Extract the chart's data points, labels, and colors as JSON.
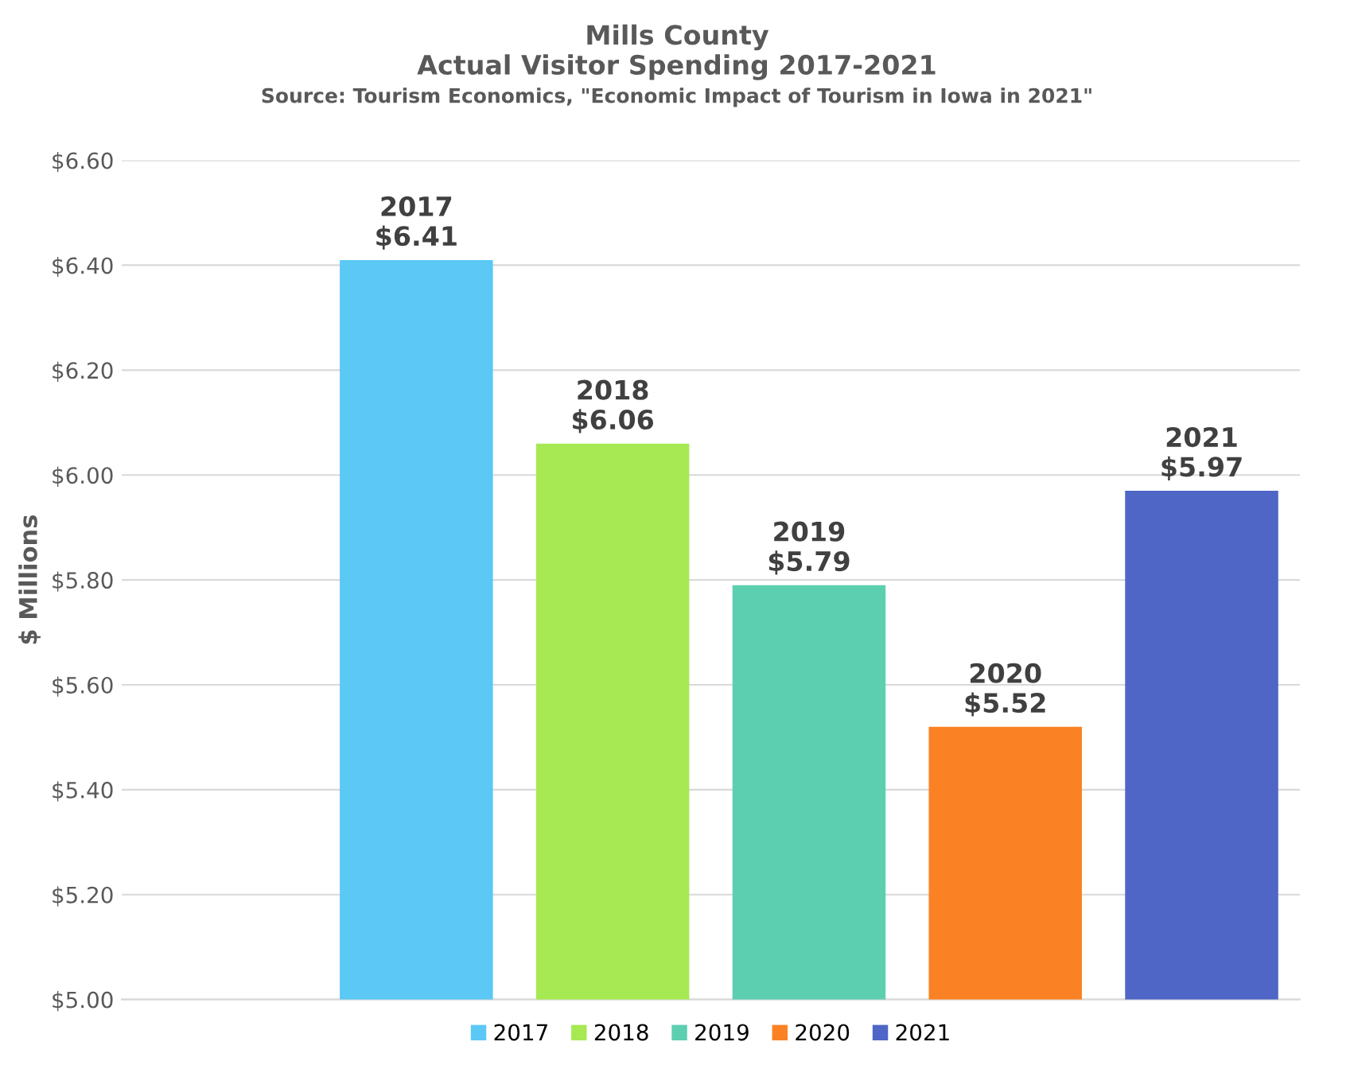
{
  "chart_data": {
    "type": "bar",
    "title": "Mills County\nActual Visitor Spending 2017-2021",
    "subtitle": "Source: Tourism Economics, \"Economic Impact of Tourism in Iowa in 2021\"",
    "ylabel": "$ Millions",
    "categories": [
      null,
      null,
      null,
      null,
      null,
      null
    ],
    "series": [
      {
        "name": "2017",
        "color": "#5bc8f5",
        "values": [
          null,
          6.41,
          null,
          null,
          null,
          null
        ],
        "value_labels": [
          null,
          "2017\n$6.41",
          null,
          null,
          null,
          null
        ]
      },
      {
        "name": "2018",
        "color": "#a7e952",
        "values": [
          null,
          null,
          6.06,
          null,
          null,
          null
        ],
        "value_labels": [
          null,
          null,
          "2018\n$6.06",
          null,
          null,
          null
        ]
      },
      {
        "name": "2019",
        "color": "#5ccfb0",
        "values": [
          null,
          null,
          null,
          5.79,
          null,
          null
        ],
        "value_labels": [
          null,
          null,
          null,
          "2019\n$5.79",
          null,
          null
        ]
      },
      {
        "name": "2020",
        "color": "#fa8224",
        "values": [
          null,
          null,
          null,
          null,
          5.52,
          null
        ],
        "value_labels": [
          null,
          null,
          null,
          null,
          "2020\n$5.52",
          null
        ]
      },
      {
        "name": "2021",
        "color": "#4f66c7",
        "values": [
          null,
          null,
          null,
          null,
          null,
          5.97
        ],
        "value_labels": [
          null,
          null,
          null,
          null,
          null,
          "2021\n$5.97"
        ]
      }
    ],
    "ylim": [
      5.0,
      6.6
    ],
    "yticks": [
      {
        "value": 5.0,
        "label": "$5.00"
      },
      {
        "value": 5.2,
        "label": "$5.20"
      },
      {
        "value": 5.4,
        "label": "$5.40"
      },
      {
        "value": 5.6,
        "label": "$5.60"
      },
      {
        "value": 5.8,
        "label": "$5.80"
      },
      {
        "value": 6.0,
        "label": "$6.00"
      },
      {
        "value": 6.2,
        "label": "$6.20"
      },
      {
        "value": 6.4,
        "label": "$6.40"
      },
      {
        "value": 6.6,
        "label": "$6.60"
      }
    ],
    "grid": "y",
    "legend": "bottom",
    "tick_labels": "y"
  }
}
